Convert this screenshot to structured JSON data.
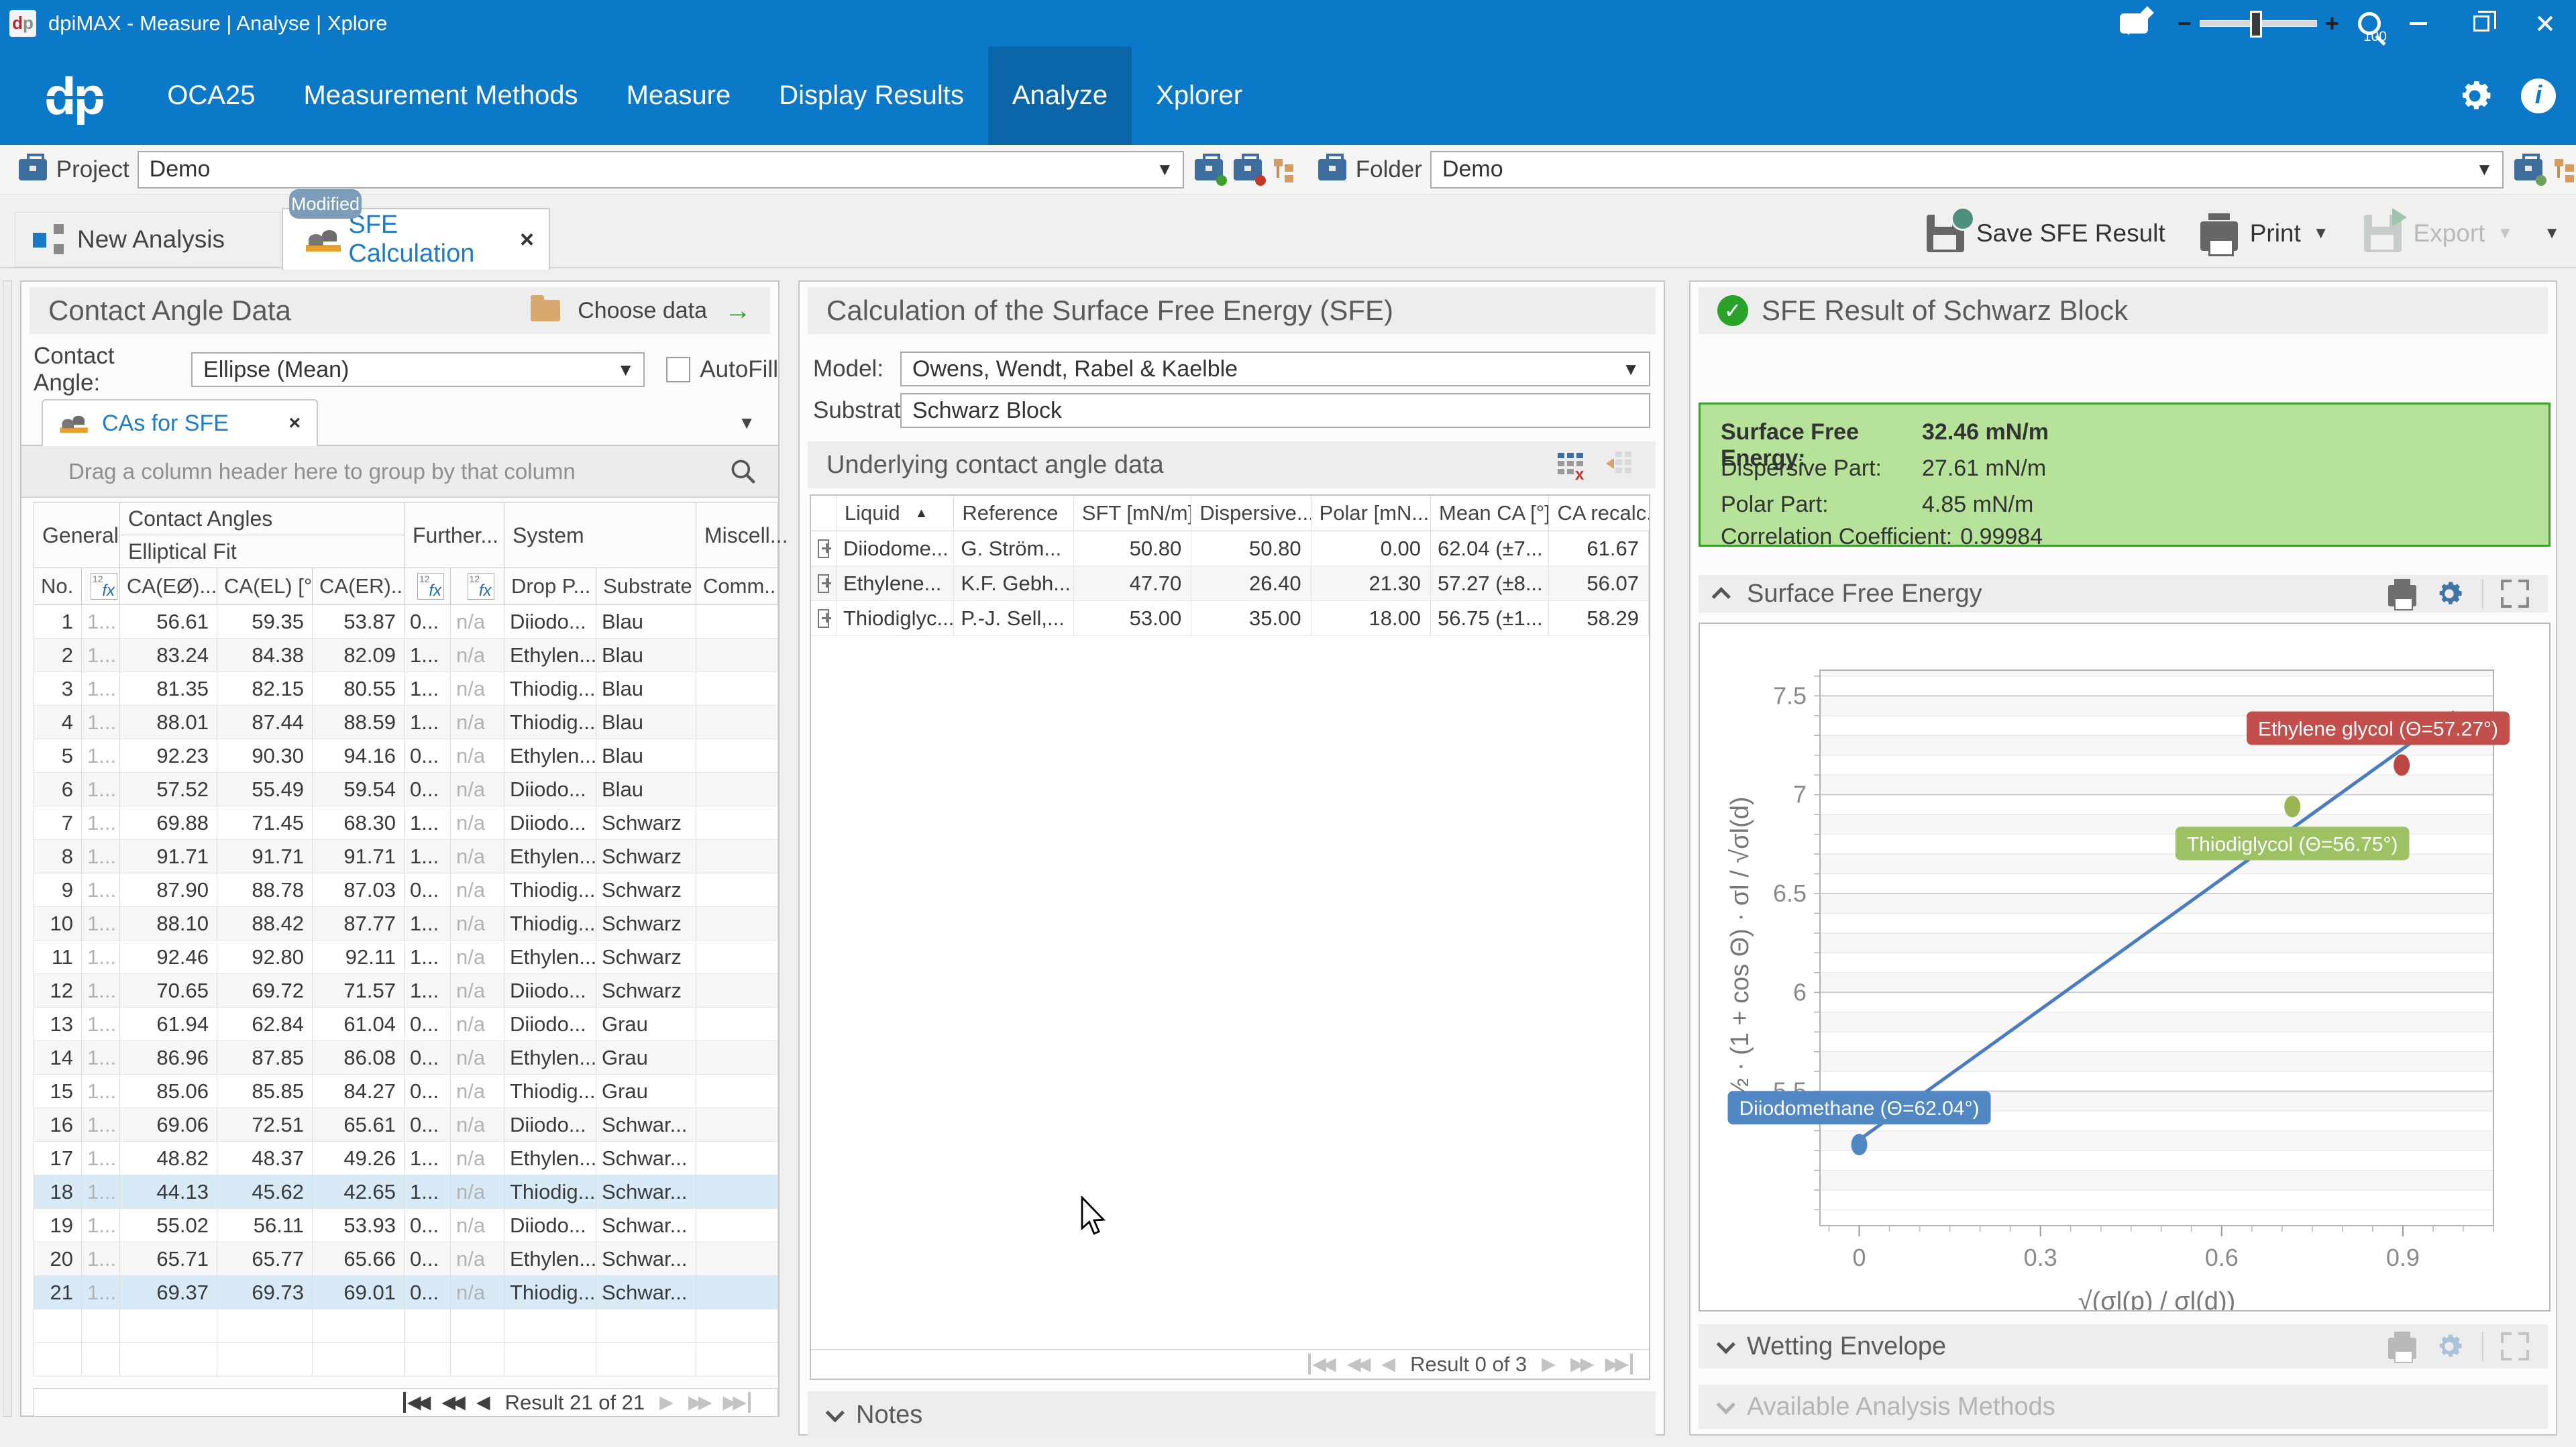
{
  "titlebar": {
    "title": "dpiMAX - Measure | Analyse | Xplore",
    "zoom_level": "100"
  },
  "nav": {
    "items": [
      "OCA25",
      "Measurement Methods",
      "Measure",
      "Display Results",
      "Analyze",
      "Xplorer"
    ],
    "active_index": 4
  },
  "toolbar": {
    "project_label": "Project",
    "project_value": "Demo",
    "folder_label": "Folder",
    "folder_value": "Demo"
  },
  "tabs": {
    "new_analysis": "New Analysis",
    "modified_badge": "Modified",
    "sfe_calculation": "SFE Calculation",
    "save_button": "Save SFE Result",
    "print_button": "Print",
    "export_button": "Export"
  },
  "left_panel": {
    "title": "Contact Angle Data",
    "choose_data": "Choose data",
    "contact_angle_label": "Contact Angle:",
    "contact_angle_value": "Ellipse (Mean)",
    "autofill_label": "AutoFill",
    "tab_label": "CAs for SFE",
    "group_hint": "Drag a column header here to group by that column",
    "header_groups": {
      "general": "General",
      "contact_angles": "Contact Angles",
      "elliptical_fit": "Elliptical Fit",
      "further": "Further...",
      "system": "System",
      "misc": "Miscell..."
    },
    "columns": [
      "No.",
      "",
      "CA(EØ)...",
      "CA(EL) [°]",
      "CA(ER)...",
      "",
      "",
      "Drop P...",
      "Substrate",
      "Comm..."
    ],
    "rows": [
      [
        "1",
        "1...",
        "56.61",
        "59.35",
        "53.87",
        "0...",
        "n/a",
        "Diiodo...",
        "Blau",
        ""
      ],
      [
        "2",
        "1...",
        "83.24",
        "84.38",
        "82.09",
        "1...",
        "n/a",
        "Ethylen...",
        "Blau",
        ""
      ],
      [
        "3",
        "1...",
        "81.35",
        "82.15",
        "80.55",
        "1...",
        "n/a",
        "Thiodig...",
        "Blau",
        ""
      ],
      [
        "4",
        "1...",
        "88.01",
        "87.44",
        "88.59",
        "1...",
        "n/a",
        "Thiodig...",
        "Blau",
        ""
      ],
      [
        "5",
        "1...",
        "92.23",
        "90.30",
        "94.16",
        "0...",
        "n/a",
        "Ethylen...",
        "Blau",
        ""
      ],
      [
        "6",
        "1...",
        "57.52",
        "55.49",
        "59.54",
        "0...",
        "n/a",
        "Diiodo...",
        "Blau",
        ""
      ],
      [
        "7",
        "1...",
        "69.88",
        "71.45",
        "68.30",
        "1...",
        "n/a",
        "Diiodo...",
        "Schwarz",
        ""
      ],
      [
        "8",
        "1...",
        "91.71",
        "91.71",
        "91.71",
        "1...",
        "n/a",
        "Ethylen...",
        "Schwarz",
        ""
      ],
      [
        "9",
        "1...",
        "87.90",
        "88.78",
        "87.03",
        "0...",
        "n/a",
        "Thiodig...",
        "Schwarz",
        ""
      ],
      [
        "10",
        "1...",
        "88.10",
        "88.42",
        "87.77",
        "1...",
        "n/a",
        "Thiodig...",
        "Schwarz",
        ""
      ],
      [
        "11",
        "1...",
        "92.46",
        "92.80",
        "92.11",
        "1...",
        "n/a",
        "Ethylen...",
        "Schwarz",
        ""
      ],
      [
        "12",
        "1...",
        "70.65",
        "69.72",
        "71.57",
        "1...",
        "n/a",
        "Diiodo...",
        "Schwarz",
        ""
      ],
      [
        "13",
        "1...",
        "61.94",
        "62.84",
        "61.04",
        "0...",
        "n/a",
        "Diiodo...",
        "Grau",
        ""
      ],
      [
        "14",
        "1...",
        "86.96",
        "87.85",
        "86.08",
        "0...",
        "n/a",
        "Ethylen...",
        "Grau",
        ""
      ],
      [
        "15",
        "1...",
        "85.06",
        "85.85",
        "84.27",
        "0...",
        "n/a",
        "Thiodig...",
        "Grau",
        ""
      ],
      [
        "16",
        "1...",
        "69.06",
        "72.51",
        "65.61",
        "0...",
        "n/a",
        "Diiodo...",
        "Schwar...",
        ""
      ],
      [
        "17",
        "1...",
        "48.82",
        "48.37",
        "49.26",
        "1...",
        "n/a",
        "Ethylen...",
        "Schwar...",
        ""
      ],
      [
        "18",
        "1...",
        "44.13",
        "45.62",
        "42.65",
        "1...",
        "n/a",
        "Thiodig...",
        "Schwar...",
        ""
      ],
      [
        "19",
        "1...",
        "55.02",
        "56.11",
        "53.93",
        "0...",
        "n/a",
        "Diiodo...",
        "Schwar...",
        ""
      ],
      [
        "20",
        "1...",
        "65.71",
        "65.77",
        "65.66",
        "0...",
        "n/a",
        "Ethylen...",
        "Schwar...",
        ""
      ],
      [
        "21",
        "1...",
        "69.37",
        "69.73",
        "69.01",
        "0...",
        "n/a",
        "Thiodig...",
        "Schwar...",
        ""
      ]
    ],
    "selected_rows": [
      18,
      21
    ],
    "pager": "Result 21 of 21"
  },
  "middle_panel": {
    "title": "Calculation of the Surface Free Energy (SFE)",
    "model_label": "Model:",
    "model_value": "Owens, Wendt, Rabel & Kaelble",
    "substrate_label": "Substrate:",
    "substrate_value": "Schwarz Block",
    "table_title": "Underlying contact angle data",
    "columns": [
      "Liquid",
      "Reference",
      "SFT [mN/m]",
      "Dispersive...",
      "Polar [mN...",
      "Mean CA [°]",
      "CA recalc...."
    ],
    "rows": [
      [
        "Diiodome...",
        "G. Ström...",
        "50.80",
        "50.80",
        "0.00",
        "62.04 (±7...",
        "61.67"
      ],
      [
        "Ethylene...",
        "K.F. Gebh...",
        "47.70",
        "26.40",
        "21.30",
        "57.27 (±8...",
        "56.07"
      ],
      [
        "Thiodiglyc...",
        "P.-J. Sell,...",
        "53.00",
        "35.00",
        "18.00",
        "56.75 (±1...",
        "58.29"
      ]
    ],
    "pager": "Result 0 of 3",
    "notes_label": "Notes"
  },
  "right_panel": {
    "result_title": "SFE Result of Schwarz Block",
    "result": {
      "sfe_label": "Surface Free Energy:",
      "sfe_value": "32.46 mN/m",
      "dispersive_label": "Dispersive Part:",
      "dispersive_value": "27.61 mN/m",
      "polar_label": "Polar Part:",
      "polar_value": "4.85 mN/m",
      "corr_label": "Correlation Coefficient:",
      "corr_value": "0.99984"
    },
    "chart_section": "Surface Free Energy",
    "wetting_section": "Wetting Envelope",
    "methods_section": "Available Analysis Methods"
  },
  "chart_data": {
    "type": "scatter",
    "title": "Surface Free Energy",
    "xlabel": "√(σl(p) / σl(d))",
    "ylabel": "½ · (1 + cos Θ) · σl / √σl(d)",
    "x_ticks": [
      0,
      0.3,
      0.6,
      0.9
    ],
    "y_ticks": [
      5.5,
      6,
      6.5,
      7,
      7.5
    ],
    "xlim": [
      -0.065,
      1.05
    ],
    "ylim": [
      4.82,
      7.63
    ],
    "grid": "horizontal minor 0.1 / major 0.5",
    "legend": "none",
    "points": [
      {
        "name": "Diiodomethane",
        "x": 0.0,
        "y": 5.23,
        "label": "Diiodomethane (Θ=62.04°)",
        "marker_color": "#4f86c4",
        "label_color": "#5187c2",
        "label_placement": "above"
      },
      {
        "name": "Thiodiglycol",
        "x": 0.717,
        "y": 6.94,
        "label": "Thiodiglycol (Θ=56.75°)",
        "marker_color": "#9ab653",
        "label_color": "#9dc263",
        "label_placement": "below"
      },
      {
        "name": "Ethylene glycol",
        "x": 0.898,
        "y": 7.15,
        "label": "Ethylene glycol (Θ=57.27°)",
        "marker_color": "#bb4642",
        "label_color": "#c24f4b",
        "label_placement": "above"
      }
    ],
    "fit_line": {
      "x_start": 0.0,
      "y_start": 5.254,
      "x_end": 0.985,
      "y_end": 7.42,
      "color": "#4a7dbf",
      "arrow_end": true
    }
  }
}
